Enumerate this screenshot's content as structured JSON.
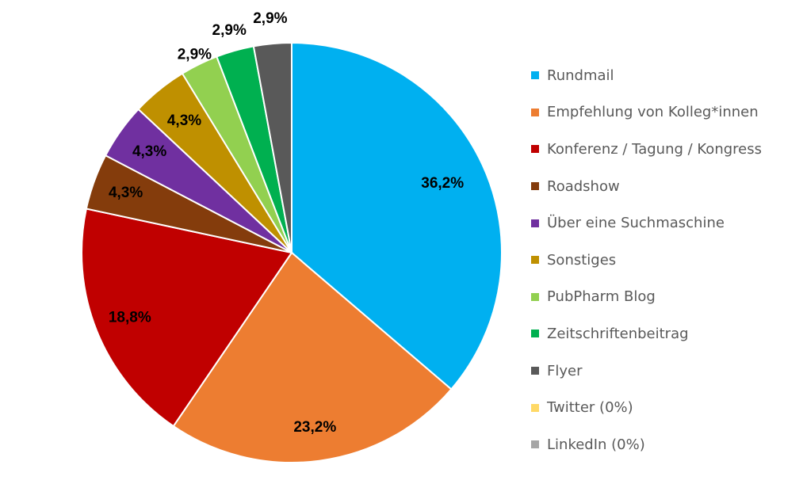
{
  "chart_data": {
    "type": "pie",
    "title": "",
    "legend_position": "right",
    "slices": [
      {
        "label": "Rundmail",
        "value": 36.2,
        "value_label": "36,2%",
        "color": "#00B0F0"
      },
      {
        "label": "Empfehlung von Kolleg*innen",
        "value": 23.2,
        "value_label": "23,2%",
        "color": "#ED7D31"
      },
      {
        "label": "Konferenz / Tagung / Kongress",
        "value": 18.8,
        "value_label": "18,8%",
        "color": "#C00000"
      },
      {
        "label": "Roadshow",
        "value": 4.3,
        "value_label": "4,3%",
        "color": "#843C0C"
      },
      {
        "label": "Über eine Suchmaschine",
        "value": 4.3,
        "value_label": "4,3%",
        "color": "#7030A0"
      },
      {
        "label": "Sonstiges",
        "value": 4.3,
        "value_label": "4,3%",
        "color": "#BF9000"
      },
      {
        "label": "PubPharm Blog",
        "value": 2.9,
        "value_label": "2,9%",
        "color": "#92D050"
      },
      {
        "label": "Zeitschriftenbeitrag",
        "value": 2.9,
        "value_label": "2,9%",
        "color": "#00B050"
      },
      {
        "label": "Flyer",
        "value": 2.9,
        "value_label": "2,9%",
        "color": "#595959"
      },
      {
        "label": "Twitter  (0%)",
        "value": 0,
        "value_label": "",
        "color": "#FFD966"
      },
      {
        "label": "LinkedIn (0%)",
        "value": 0,
        "value_label": "",
        "color": "#A6A6A6"
      }
    ]
  }
}
